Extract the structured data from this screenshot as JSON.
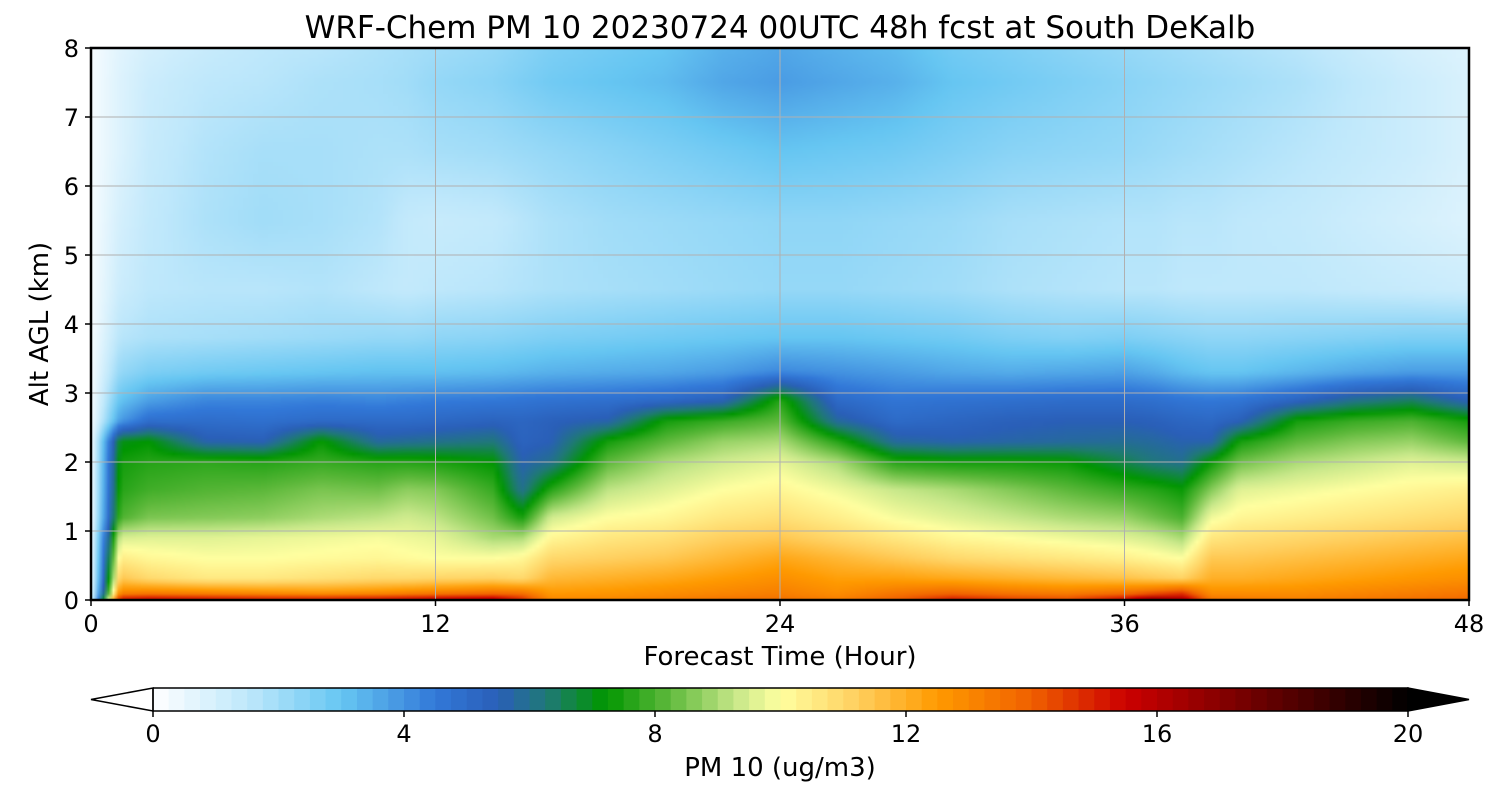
{
  "chart_data": {
    "type": "heatmap",
    "title": "WRF-Chem PM 10  20230724 00UTC 48h fcst at South DeKalb",
    "xlabel": "Forecast Time (Hour)",
    "ylabel": "Alt AGL (km)",
    "xlim": [
      0,
      48
    ],
    "ylim": [
      0,
      8
    ],
    "xticks": [
      "0",
      "12",
      "24",
      "36",
      "48"
    ],
    "yticks": [
      "0",
      "1",
      "2",
      "3",
      "4",
      "5",
      "6",
      "7",
      "8"
    ],
    "grid": true,
    "colorbar": {
      "label": "PM 10  (ug/m3)",
      "range": [
        0,
        20
      ],
      "ticks": [
        "0",
        "4",
        "8",
        "12",
        "16",
        "20"
      ],
      "extend": "both",
      "orientation": "horizontal",
      "stops": [
        {
          "value": 0,
          "color": "#ffffff"
        },
        {
          "value": 1.5,
          "color": "#bfe8fb"
        },
        {
          "value": 3.0,
          "color": "#66c6f2"
        },
        {
          "value": 4.5,
          "color": "#3278d8"
        },
        {
          "value": 5.5,
          "color": "#2a5fb8"
        },
        {
          "value": 6.3,
          "color": "#1f7a74"
        },
        {
          "value": 7.2,
          "color": "#009600"
        },
        {
          "value": 8.2,
          "color": "#5cb83a"
        },
        {
          "value": 9.3,
          "color": "#c8e88a"
        },
        {
          "value": 10.0,
          "color": "#ffffa0"
        },
        {
          "value": 11.2,
          "color": "#ffd060"
        },
        {
          "value": 12.5,
          "color": "#ff9a00"
        },
        {
          "value": 14.0,
          "color": "#f06000"
        },
        {
          "value": 15.5,
          "color": "#cc0000"
        },
        {
          "value": 17.5,
          "color": "#700000"
        },
        {
          "value": 20.0,
          "color": "#000000"
        }
      ]
    },
    "forecast_hours": [
      0,
      1,
      2,
      4,
      6,
      8,
      10,
      11,
      12,
      14,
      15,
      16,
      18,
      20,
      22,
      24,
      26,
      28,
      30,
      32,
      34,
      36,
      37,
      38,
      39,
      40,
      42,
      44,
      46,
      48
    ],
    "altitudes_km": [
      0,
      0.1,
      0.3,
      0.6,
      0.9,
      1.2,
      1.6,
      2.0,
      2.3,
      2.6,
      2.9,
      3.3,
      3.8,
      4.5,
      5.5,
      6.5,
      7.5,
      8.0
    ],
    "series_note": "",
    "values": [
      [
        0.5,
        0.4,
        0.3,
        0.3,
        0.3,
        0.2,
        0.2,
        0.2,
        0.2,
        0.2,
        0.2,
        0.2,
        0.2,
        0.2,
        0.2,
        0.2,
        0.2,
        0.2
      ],
      [
        15.5,
        13.0,
        11.5,
        10.5,
        9.5,
        8.0,
        7.6,
        7.4,
        7.0,
        3.8,
        3.0,
        2.2,
        1.6,
        1.2,
        1.0,
        0.8,
        0.8,
        0.7
      ],
      [
        15.8,
        13.2,
        11.0,
        10.2,
        9.6,
        8.5,
        7.9,
        7.6,
        7.2,
        4.8,
        3.7,
        2.6,
        1.8,
        1.5,
        1.4,
        1.3,
        1.2,
        1.0
      ],
      [
        15.6,
        13.0,
        10.6,
        10.0,
        9.6,
        8.6,
        8.1,
        7.7,
        5.6,
        4.9,
        4.2,
        2.8,
        1.9,
        1.6,
        1.8,
        1.7,
        1.5,
        1.3
      ],
      [
        15.4,
        12.8,
        10.6,
        10.0,
        9.7,
        8.7,
        8.2,
        7.6,
        5.5,
        4.8,
        4.2,
        2.9,
        2.0,
        1.6,
        2.0,
        1.9,
        1.6,
        1.5
      ],
      [
        15.4,
        12.6,
        10.8,
        10.1,
        9.8,
        9.0,
        8.5,
        7.8,
        7.3,
        5.0,
        4.3,
        3.0,
        2.1,
        1.7,
        1.9,
        1.9,
        1.8,
        1.6
      ],
      [
        15.6,
        12.8,
        11.0,
        10.2,
        9.9,
        9.2,
        8.4,
        7.6,
        5.8,
        5.0,
        4.2,
        3.1,
        2.2,
        1.5,
        1.7,
        1.8,
        1.9,
        1.8
      ],
      [
        15.8,
        13.0,
        11.0,
        10.1,
        9.8,
        9.4,
        8.7,
        7.6,
        5.9,
        5.0,
        4.3,
        3.1,
        2.2,
        1.4,
        1.4,
        1.8,
        2.0,
        1.9
      ],
      [
        16.0,
        13.2,
        11.1,
        10.0,
        9.7,
        9.2,
        8.6,
        7.5,
        6.0,
        5.1,
        4.4,
        3.1,
        2.3,
        1.5,
        1.3,
        1.9,
        2.2,
        2.0
      ],
      [
        16.2,
        13.6,
        11.2,
        10.0,
        9.0,
        8.4,
        7.8,
        7.2,
        6.2,
        5.3,
        4.5,
        3.2,
        2.4,
        1.6,
        1.4,
        2.0,
        2.4,
        2.2
      ],
      [
        15.0,
        13.5,
        11.0,
        10.2,
        9.0,
        7.4,
        6.0,
        5.6,
        5.3,
        5.2,
        4.6,
        3.3,
        2.5,
        1.7,
        1.6,
        2.1,
        2.6,
        2.4
      ],
      [
        13.0,
        12.5,
        11.8,
        11.0,
        10.2,
        9.4,
        7.6,
        6.0,
        5.5,
        5.4,
        4.7,
        3.4,
        2.6,
        1.8,
        1.8,
        2.2,
        2.8,
        2.6
      ],
      [
        13.0,
        12.6,
        12.0,
        11.2,
        10.6,
        10.0,
        9.2,
        8.2,
        7.4,
        5.6,
        4.8,
        3.5,
        2.7,
        1.9,
        2.0,
        2.4,
        3.0,
        2.8
      ],
      [
        13.2,
        12.8,
        12.2,
        11.4,
        10.8,
        10.2,
        9.6,
        9.0,
        8.2,
        7.4,
        5.0,
        3.6,
        2.8,
        2.0,
        2.1,
        2.6,
        3.2,
        3.0
      ],
      [
        13.5,
        13.0,
        12.5,
        11.8,
        11.2,
        10.6,
        10.0,
        9.4,
        8.8,
        7.8,
        5.4,
        3.8,
        2.9,
        2.1,
        2.2,
        2.8,
        3.6,
        3.4
      ],
      [
        13.6,
        13.2,
        12.8,
        12.2,
        11.4,
        10.8,
        10.2,
        9.7,
        9.0,
        8.2,
        7.6,
        4.2,
        3.0,
        2.2,
        2.3,
        3.0,
        3.8,
        3.6
      ],
      [
        13.2,
        12.8,
        12.4,
        11.8,
        11.0,
        10.4,
        9.8,
        9.0,
        7.6,
        5.8,
        5.0,
        4.0,
        3.0,
        2.2,
        2.3,
        2.9,
        3.6,
        3.4
      ],
      [
        14.0,
        13.4,
        12.4,
        11.4,
        10.6,
        9.9,
        9.3,
        7.6,
        5.8,
        5.0,
        4.6,
        3.8,
        2.9,
        2.1,
        2.2,
        2.8,
        3.4,
        3.2
      ],
      [
        15.2,
        13.8,
        12.2,
        11.0,
        10.2,
        9.6,
        9.0,
        7.4,
        5.6,
        5.2,
        4.7,
        3.6,
        2.8,
        2.0,
        2.1,
        2.6,
        3.0,
        2.8
      ],
      [
        14.6,
        13.4,
        12.0,
        10.8,
        10.0,
        9.3,
        8.6,
        7.4,
        5.7,
        5.4,
        4.8,
        3.5,
        2.6,
        1.8,
        1.9,
        2.4,
        2.8,
        2.6
      ],
      [
        14.4,
        13.2,
        11.8,
        10.6,
        9.8,
        9.0,
        8.2,
        7.3,
        5.8,
        5.5,
        4.9,
        3.6,
        2.5,
        1.7,
        1.8,
        2.3,
        2.6,
        2.4
      ],
      [
        15.6,
        13.6,
        11.6,
        10.4,
        9.6,
        8.8,
        7.8,
        6.6,
        5.9,
        5.5,
        4.9,
        3.7,
        2.6,
        1.6,
        1.7,
        2.2,
        2.4,
        2.2
      ],
      [
        17.0,
        14.0,
        11.4,
        10.2,
        9.4,
        8.4,
        7.6,
        6.2,
        5.8,
        5.4,
        4.8,
        3.5,
        2.5,
        1.6,
        1.7,
        2.1,
        2.3,
        2.1
      ],
      [
        16.4,
        14.6,
        11.2,
        10.0,
        9.0,
        8.0,
        7.3,
        6.0,
        5.6,
        5.2,
        4.6,
        3.2,
        2.4,
        1.5,
        1.6,
        2.0,
        2.2,
        2.0
      ],
      [
        13.6,
        12.8,
        12.0,
        11.4,
        10.6,
        9.8,
        8.6,
        7.3,
        5.6,
        5.1,
        4.5,
        3.0,
        2.3,
        1.5,
        1.6,
        1.9,
        2.1,
        1.9
      ],
      [
        13.4,
        12.8,
        12.0,
        11.4,
        10.8,
        10.2,
        9.6,
        8.4,
        7.4,
        5.4,
        4.6,
        3.0,
        2.3,
        1.5,
        1.5,
        1.8,
        2.0,
        1.8
      ],
      [
        13.2,
        12.8,
        12.2,
        11.6,
        11.0,
        10.4,
        9.8,
        9.0,
        8.2,
        7.4,
        5.2,
        3.3,
        2.4,
        1.5,
        1.4,
        1.6,
        1.8,
        1.6
      ],
      [
        13.4,
        13.0,
        12.4,
        11.8,
        11.2,
        10.6,
        10.0,
        9.3,
        8.6,
        7.8,
        6.0,
        3.6,
        2.5,
        1.4,
        1.2,
        1.4,
        1.5,
        1.3
      ],
      [
        13.6,
        13.2,
        12.6,
        12.0,
        11.4,
        10.8,
        10.2,
        9.6,
        8.8,
        8.0,
        6.4,
        3.8,
        2.6,
        1.3,
        1.0,
        1.2,
        1.2,
        1.0
      ],
      [
        13.8,
        13.4,
        12.8,
        12.2,
        11.6,
        11.0,
        10.4,
        9.4,
        8.2,
        7.4,
        5.4,
        3.8,
        2.6,
        1.2,
        0.8,
        0.9,
        0.9,
        0.8
      ]
    ]
  }
}
